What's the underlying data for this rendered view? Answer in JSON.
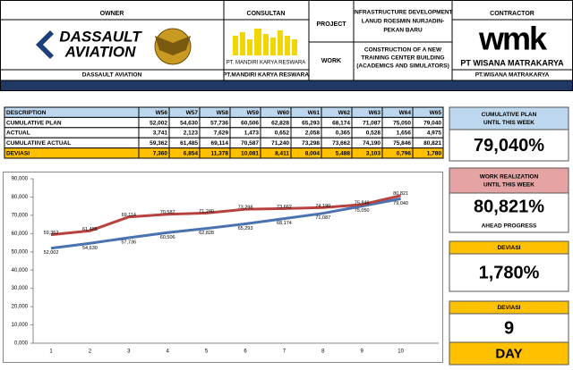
{
  "header": {
    "owner": "OWNER",
    "consultant": "CONSULTAN",
    "project_label": "PROJECT",
    "work_label": "WORK",
    "contractor": "CONTRACTOR",
    "project_lines": [
      "INFRASTRUCTURE DEVELOPMENT",
      "LANUD ROESMIN NURJADIN-",
      "PEKAN BARU"
    ],
    "work_lines": [
      "CONSTRUCTION OF A NEW",
      "TRAINING CENTER BUILDING",
      "(ACADEMICS AND SIMULATORS)"
    ],
    "owner_logo": [
      "DASSAULT",
      "AVIATION"
    ],
    "consultant_logo": "PT. MANDIRI KARYA RESWARA",
    "contractor_mark": "wmk",
    "contractor_logo": "PT WISANA MATRAKARYA",
    "owner_name": "DASSAULT AVIATION",
    "consultant_name": "PT.MANDIRI KARYA RESWARA",
    "contractor_name": "PT.WISANA MATRAKARYA"
  },
  "table": {
    "header": [
      "DESCRIPTION",
      "W56",
      "W57",
      "W58",
      "W59",
      "W60",
      "W61",
      "W62",
      "W63",
      "W64",
      "W65"
    ],
    "rows": [
      [
        "CUMULATIVE PLAN",
        "52,002",
        "54,630",
        "57,736",
        "60,506",
        "62,828",
        "65,293",
        "68,174",
        "71,087",
        "75,050",
        "79,040"
      ],
      [
        "ACTUAL",
        "3,741",
        "2,123",
        "7,629",
        "1,473",
        "0,652",
        "2,058",
        "0,365",
        "0,528",
        "1,656",
        "4,975"
      ],
      [
        "CUMULATIIVE ACTUAL",
        "59,362",
        "61,485",
        "69,114",
        "70,587",
        "71,240",
        "73,298",
        "73,662",
        "74,190",
        "75,846",
        "80,821"
      ],
      [
        "DEVIASI",
        "7,360",
        "6,854",
        "11,378",
        "10,081",
        "8,411",
        "8,004",
        "5,488",
        "3,103",
        "0,796",
        "1,780"
      ]
    ]
  },
  "chart_data": {
    "type": "line",
    "categories": [
      "1",
      "2",
      "3",
      "4",
      "5",
      "6",
      "7",
      "8",
      "9",
      "10"
    ],
    "series": [
      {
        "name": "CUMULATIVE PLAN",
        "color": "#4a72b0",
        "values": [
          52.002,
          54.63,
          57.736,
          60.506,
          62.828,
          65.293,
          68.174,
          71.087,
          75.05,
          79.04
        ],
        "value_labels": [
          "52,002",
          "54,630",
          "57,736",
          "60,506",
          "62,828",
          "65,293",
          "68,174",
          "71,087",
          "75,050",
          "79,040"
        ]
      },
      {
        "name": "CUMULATIIVE ACTUAL",
        "color": "#b8423f",
        "values": [
          59.362,
          61.485,
          69.114,
          70.587,
          71.24,
          73.298,
          73.662,
          74.19,
          75.846,
          80.821
        ],
        "value_labels": [
          "59,362",
          "61,485",
          "69,114",
          "70,587",
          "71,240",
          "73,298",
          "73,662",
          "74,190",
          "75,846",
          "80,821"
        ]
      }
    ],
    "ylim": [
      0,
      90
    ],
    "yticks": [
      {
        "value": 0,
        "label": "0,000"
      },
      {
        "value": 10,
        "label": "10,000"
      },
      {
        "value": 20,
        "label": "20,000"
      },
      {
        "value": 30,
        "label": "30,000"
      },
      {
        "value": 40,
        "label": "40,000"
      },
      {
        "value": 50,
        "label": "50,000"
      },
      {
        "value": 60,
        "label": "60,000"
      },
      {
        "value": 70,
        "label": "70,000"
      },
      {
        "value": 80,
        "label": "80,000"
      },
      {
        "value": 90,
        "label": "90,000"
      }
    ],
    "grid": false
  },
  "kpis": [
    {
      "title": [
        "CUMULATIVE PLAN",
        "UNTIL THIS WEEK"
      ],
      "value": "79,040%"
    },
    {
      "title": [
        "WORK REALIZATION",
        "UNTIL THIS WEEK"
      ],
      "value": "80,821%",
      "note": "AHEAD PROGRESS"
    },
    {
      "title": [
        "DEVIASI"
      ],
      "value": "1,780%"
    },
    {
      "title": [
        "DEVIASI"
      ],
      "value": "9",
      "unit": "DAY"
    }
  ]
}
